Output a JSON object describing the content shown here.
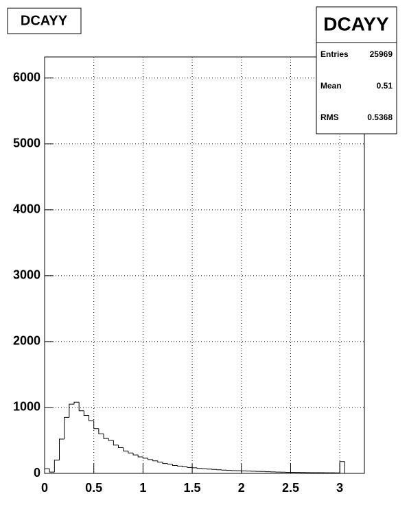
{
  "chart_data": {
    "type": "histogram",
    "title": "DCAYY",
    "bins": [
      0,
      0.05,
      0.1,
      0.15,
      0.2,
      0.25,
      0.3,
      0.35,
      0.4,
      0.45,
      0.5,
      0.55,
      0.6,
      0.65,
      0.7,
      0.75,
      0.8,
      0.85,
      0.9,
      0.95,
      1,
      1.05,
      1.1,
      1.15,
      1.2,
      1.25,
      1.3,
      1.35,
      1.4,
      1.45,
      1.5,
      1.55,
      1.6,
      1.65,
      1.7,
      1.75,
      1.8,
      1.85,
      1.9,
      1.95,
      2,
      2.05,
      2.1,
      2.15,
      2.2,
      2.25,
      2.3,
      2.35,
      2.4,
      2.45,
      2.5,
      2.55,
      2.6,
      2.65,
      2.7,
      2.75,
      2.8,
      2.85,
      2.9,
      2.95,
      3,
      3.05,
      3.1,
      3.15,
      3.2,
      3.25
    ],
    "values": [
      70,
      20,
      200,
      520,
      850,
      1050,
      1080,
      950,
      880,
      800,
      680,
      600,
      530,
      500,
      430,
      390,
      340,
      310,
      280,
      250,
      230,
      210,
      190,
      170,
      150,
      140,
      120,
      110,
      100,
      90,
      85,
      75,
      70,
      65,
      60,
      55,
      50,
      45,
      42,
      40,
      38,
      35,
      32,
      30,
      28,
      25,
      22,
      20,
      18,
      16,
      15,
      14,
      13,
      12,
      11,
      10,
      10,
      9,
      9,
      8,
      180,
      0,
      0,
      0,
      0
    ],
    "color": "#000000",
    "xlim": [
      0,
      3.25
    ],
    "xticks": [
      0,
      0.5,
      1,
      1.5,
      2,
      2.5,
      3
    ],
    "ylim": [
      0,
      6320
    ],
    "yticks": [
      0,
      1000,
      2000,
      3000,
      4000,
      5000,
      6000
    ],
    "grid": true,
    "stats": {
      "title": "DCAYY",
      "rows": [
        [
          "Entries",
          25969
        ],
        [
          "Mean",
          0.51
        ],
        [
          "RMS",
          0.5368
        ]
      ]
    }
  }
}
